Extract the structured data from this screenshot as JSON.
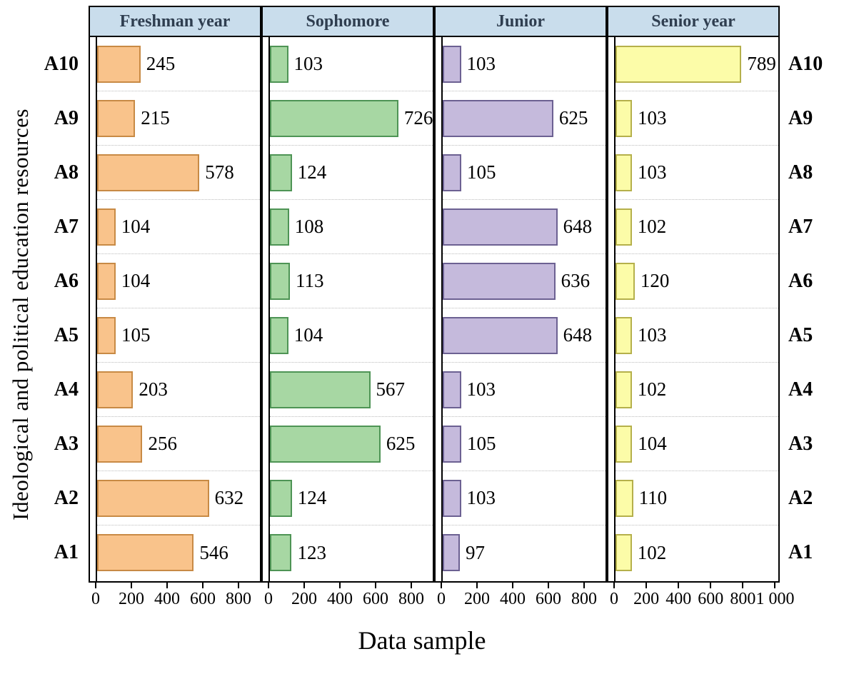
{
  "chart_data": {
    "type": "bar",
    "orientation": "horizontal",
    "xlabel": "Data sample",
    "ylabel": "Ideological and political education resources",
    "categories_top_to_bottom": [
      "A10",
      "A9",
      "A8",
      "A7",
      "A6",
      "A5",
      "A4",
      "A3",
      "A2",
      "A1"
    ],
    "grid": "dotted-horizontal",
    "panel_header_bg": "#c9ddec",
    "panels": [
      {
        "title": "Freshman year",
        "fill": "#f9c38b",
        "stroke": "#c88a45",
        "axis_max": 920,
        "ticks": [
          0,
          200,
          400,
          600,
          800
        ],
        "tick_labels": [
          "0",
          "200",
          "400",
          "600",
          "800"
        ],
        "values": [
          245,
          215,
          578,
          104,
          104,
          105,
          203,
          256,
          632,
          546
        ]
      },
      {
        "title": "Sophomore",
        "fill": "#a7d7a3",
        "stroke": "#4e9455",
        "axis_max": 920,
        "ticks": [
          0,
          200,
          400,
          600,
          800
        ],
        "tick_labels": [
          "0",
          "200",
          "400",
          "600",
          "800"
        ],
        "values": [
          103,
          726,
          124,
          108,
          113,
          104,
          567,
          625,
          124,
          123
        ]
      },
      {
        "title": "Junior",
        "fill": "#c5badc",
        "stroke": "#6c6192",
        "axis_max": 920,
        "ticks": [
          0,
          200,
          400,
          600,
          800
        ],
        "tick_labels": [
          "0",
          "200",
          "400",
          "600",
          "800"
        ],
        "values": [
          103,
          625,
          105,
          648,
          636,
          648,
          103,
          105,
          103,
          97
        ]
      },
      {
        "title": "Senior year",
        "fill": "#fcfca8",
        "stroke": "#b5b04b",
        "axis_max": 1020,
        "ticks": [
          0,
          200,
          400,
          600,
          800,
          1000
        ],
        "tick_labels": [
          "0",
          "200",
          "400",
          "600",
          "800",
          "1 000"
        ],
        "values": [
          789,
          103,
          103,
          102,
          120,
          103,
          102,
          104,
          110,
          102
        ]
      }
    ]
  }
}
